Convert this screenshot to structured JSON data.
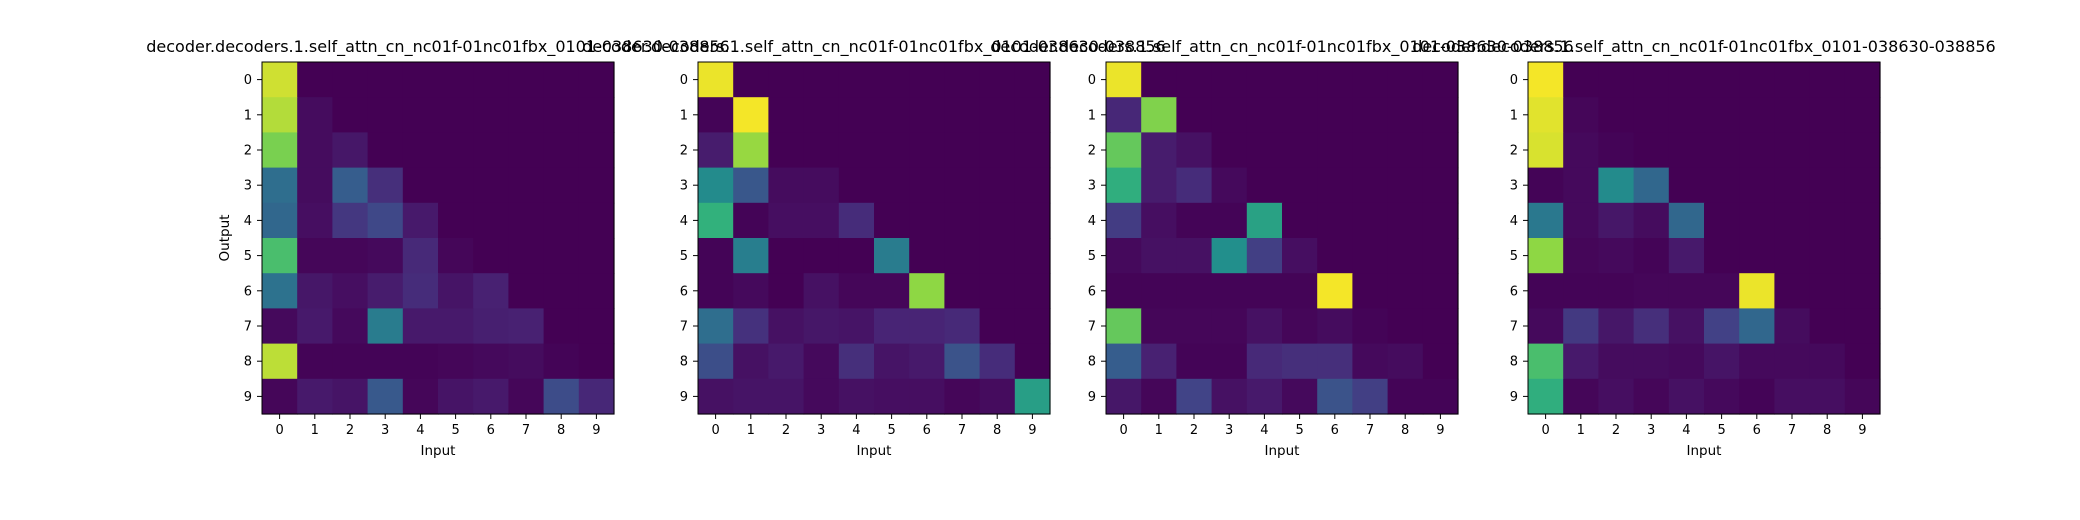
{
  "chart_data": [
    {
      "type": "heatmap",
      "title": "decoder.decoders.1.self_attn_cn_nc01f-01nc01fbx_0101-038630-038856",
      "xlabel": "Input",
      "ylabel": "Output",
      "x_ticks": [
        "0",
        "1",
        "2",
        "3",
        "4",
        "5",
        "6",
        "7",
        "8",
        "9"
      ],
      "y_ticks": [
        "0",
        "1",
        "2",
        "3",
        "4",
        "5",
        "6",
        "7",
        "8",
        "9"
      ],
      "colormap": "viridis",
      "values": [
        [
          0.95,
          0,
          0,
          0,
          0,
          0,
          0,
          0,
          0,
          0
        ],
        [
          0.92,
          0.04,
          0,
          0,
          0,
          0,
          0,
          0,
          0,
          0
        ],
        [
          0.85,
          0.04,
          0.08,
          0,
          0,
          0,
          0,
          0,
          0,
          0
        ],
        [
          0.45,
          0.04,
          0.37,
          0.17,
          0,
          0,
          0,
          0,
          0,
          0
        ],
        [
          0.42,
          0.05,
          0.2,
          0.27,
          0.09,
          0,
          0,
          0,
          0,
          0
        ],
        [
          0.78,
          0.02,
          0.02,
          0.03,
          0.15,
          0.02,
          0,
          0,
          0,
          0
        ],
        [
          0.47,
          0.08,
          0.05,
          0.1,
          0.16,
          0.07,
          0.12,
          0,
          0,
          0
        ],
        [
          0.03,
          0.09,
          0.03,
          0.52,
          0.09,
          0.09,
          0.11,
          0.12,
          0,
          0
        ],
        [
          0.93,
          0.01,
          0.01,
          0.01,
          0.01,
          0.02,
          0.03,
          0.04,
          0.01,
          0
        ],
        [
          0.02,
          0.09,
          0.07,
          0.35,
          0.02,
          0.07,
          0.09,
          0.02,
          0.29,
          0.14
        ]
      ]
    },
    {
      "type": "heatmap",
      "title": "decoder.decoders.1.self_attn_cn_nc01f-01nc01fbx_0101-038630-038856",
      "xlabel": "Input",
      "ylabel": "",
      "x_ticks": [
        "0",
        "1",
        "2",
        "3",
        "4",
        "5",
        "6",
        "7",
        "8",
        "9"
      ],
      "y_ticks": [
        "0",
        "1",
        "2",
        "3",
        "4",
        "5",
        "6",
        "7",
        "8",
        "9"
      ],
      "colormap": "viridis",
      "values": [
        [
          0.98,
          0,
          0,
          0,
          0,
          0,
          0,
          0,
          0,
          0
        ],
        [
          0.01,
          0.99,
          0,
          0,
          0,
          0,
          0,
          0,
          0,
          0
        ],
        [
          0.1,
          0.89,
          0,
          0,
          0,
          0,
          0,
          0,
          0,
          0
        ],
        [
          0.6,
          0.34,
          0.04,
          0.04,
          0,
          0,
          0,
          0,
          0,
          0
        ],
        [
          0.73,
          0.01,
          0.05,
          0.05,
          0.16,
          0,
          0,
          0,
          0,
          0
        ],
        [
          0.01,
          0.53,
          0,
          0,
          0,
          0.52,
          0,
          0,
          0,
          0
        ],
        [
          0.01,
          0.03,
          0,
          0.06,
          0.02,
          0.02,
          0.88,
          0,
          0,
          0
        ],
        [
          0.45,
          0.18,
          0.06,
          0.08,
          0.07,
          0.13,
          0.13,
          0.15,
          0,
          0
        ],
        [
          0.3,
          0.06,
          0.09,
          0.03,
          0.17,
          0.07,
          0.09,
          0.32,
          0.16,
          0
        ],
        [
          0.06,
          0.07,
          0.07,
          0.03,
          0.06,
          0.05,
          0.05,
          0.02,
          0.04,
          0.67
        ]
      ]
    },
    {
      "type": "heatmap",
      "title": "decoder.decoders.1.self_attn_cn_nc01f-01nc01fbx_0101-038630-038856",
      "xlabel": "Input",
      "ylabel": "",
      "x_ticks": [
        "0",
        "1",
        "2",
        "3",
        "4",
        "5",
        "6",
        "7",
        "8",
        "9"
      ],
      "y_ticks": [
        "0",
        "1",
        "2",
        "3",
        "4",
        "5",
        "6",
        "7",
        "8",
        "9"
      ],
      "colormap": "viridis",
      "values": [
        [
          0.98,
          0,
          0,
          0,
          0,
          0,
          0,
          0,
          0,
          0
        ],
        [
          0.14,
          0.86,
          0,
          0,
          0,
          0,
          0,
          0,
          0,
          0
        ],
        [
          0.82,
          0.1,
          0.06,
          0,
          0,
          0,
          0,
          0,
          0,
          0
        ],
        [
          0.72,
          0.1,
          0.16,
          0.03,
          0,
          0,
          0,
          0,
          0,
          0
        ],
        [
          0.22,
          0.05,
          0.01,
          0.01,
          0.68,
          0,
          0,
          0,
          0,
          0
        ],
        [
          0.03,
          0.06,
          0.06,
          0.62,
          0.23,
          0.05,
          0,
          0,
          0,
          0
        ],
        [
          0.01,
          0.01,
          0.01,
          0.01,
          0.01,
          0.01,
          0.99,
          0,
          0,
          0
        ],
        [
          0.82,
          0.02,
          0.02,
          0.02,
          0.06,
          0.02,
          0.04,
          0.01,
          0,
          0
        ],
        [
          0.37,
          0.12,
          0.01,
          0.01,
          0.15,
          0.17,
          0.17,
          0.03,
          0.04,
          0
        ],
        [
          0.08,
          0.02,
          0.25,
          0.06,
          0.09,
          0.03,
          0.32,
          0.23,
          0.01,
          0.01
        ]
      ]
    },
    {
      "type": "heatmap",
      "title": "decoder.decoders.1.self_attn_cn_nc01f-01nc01fbx_0101-038630-038856",
      "xlabel": "Input",
      "ylabel": "",
      "x_ticks": [
        "0",
        "1",
        "2",
        "3",
        "4",
        "5",
        "6",
        "7",
        "8",
        "9"
      ],
      "y_ticks": [
        "0",
        "1",
        "2",
        "3",
        "4",
        "5",
        "6",
        "7",
        "8",
        "9"
      ],
      "colormap": "viridis",
      "values": [
        [
          0.99,
          0,
          0,
          0,
          0,
          0,
          0,
          0,
          0,
          0
        ],
        [
          0.97,
          0.02,
          0,
          0,
          0,
          0,
          0,
          0,
          0,
          0
        ],
        [
          0.96,
          0.03,
          0.01,
          0,
          0,
          0,
          0,
          0,
          0,
          0
        ],
        [
          0.01,
          0.03,
          0.6,
          0.42,
          0,
          0,
          0,
          0,
          0,
          0
        ],
        [
          0.5,
          0.03,
          0.08,
          0.04,
          0.42,
          0,
          0,
          0,
          0,
          0
        ],
        [
          0.88,
          0.02,
          0.03,
          0.01,
          0.09,
          0,
          0,
          0,
          0,
          0
        ],
        [
          0.01,
          0.01,
          0.01,
          0.02,
          0.02,
          0.02,
          0.98,
          0,
          0,
          0
        ],
        [
          0.03,
          0.21,
          0.08,
          0.17,
          0.06,
          0.24,
          0.42,
          0.04,
          0,
          0
        ],
        [
          0.78,
          0.09,
          0.04,
          0.04,
          0.03,
          0.07,
          0.03,
          0.03,
          0.03,
          0
        ],
        [
          0.72,
          0.02,
          0.05,
          0.02,
          0.06,
          0.03,
          0.01,
          0.05,
          0.05,
          0.02
        ]
      ]
    }
  ]
}
